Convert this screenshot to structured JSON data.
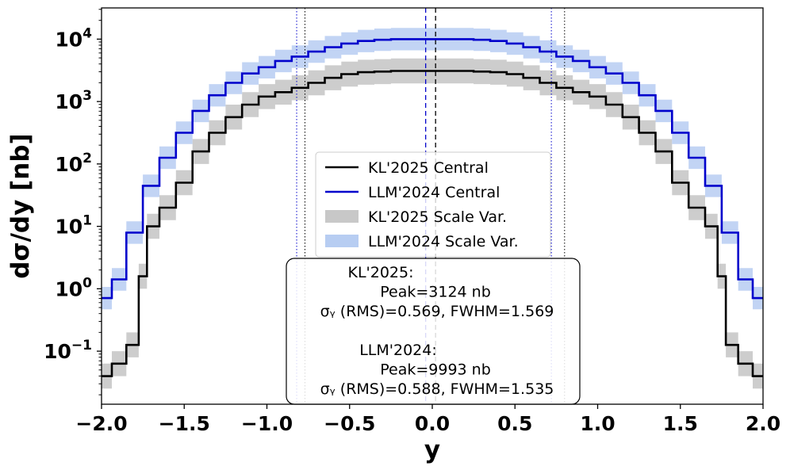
{
  "chart_data": {
    "type": "line",
    "xlabel": "y",
    "ylabel": "dσ/dy [nb]",
    "xlim": [
      -2.0,
      2.0
    ],
    "ylim_log10": [
      -1.85,
      4.5
    ],
    "yscale": "log",
    "grid": false,
    "x_ticks": [
      "−2.0",
      "−1.5",
      "−1.0",
      "−0.5",
      "0.0",
      "0.5",
      "1.0",
      "1.5",
      "2.0"
    ],
    "x_tick_values": [
      -2.0,
      -1.5,
      -1.0,
      -0.5,
      0.0,
      0.5,
      1.0,
      1.5,
      2.0
    ],
    "y_ticks": [
      {
        "exp": -1,
        "base": "10",
        "sup": "−1"
      },
      {
        "exp": 0,
        "base": "10",
        "sup": "0"
      },
      {
        "exp": 1,
        "base": "10",
        "sup": "1"
      },
      {
        "exp": 2,
        "base": "10",
        "sup": "2"
      },
      {
        "exp": 3,
        "base": "10",
        "sup": "3"
      },
      {
        "exp": 4,
        "base": "10",
        "sup": "4"
      }
    ],
    "series": [
      {
        "name": "KL'2025 Central",
        "band_name": "KL'2025 Scale Var.",
        "color": "#000000",
        "band_color": "#c8c8c8",
        "x": [
          -1.975,
          -1.9,
          -1.8,
          -1.75,
          -1.7,
          -1.6,
          -1.5,
          -1.4,
          -1.3,
          -1.2,
          -1.1,
          -1.0,
          -0.9,
          -0.8,
          -0.7,
          -0.6,
          -0.5,
          -0.4,
          -0.3,
          -0.2,
          -0.1,
          0.0,
          0.1,
          0.2,
          0.3,
          0.4,
          0.5,
          0.6,
          0.7,
          0.8,
          0.9,
          1.0,
          1.1,
          1.2,
          1.3,
          1.4,
          1.5,
          1.6,
          1.7,
          1.75,
          1.8,
          1.9,
          1.975
        ],
        "log10_y": [
          -1.4,
          -1.2,
          -0.9,
          0.2,
          1.0,
          1.3,
          1.7,
          2.2,
          2.5,
          2.75,
          2.95,
          3.08,
          3.15,
          3.22,
          3.3,
          3.38,
          3.44,
          3.47,
          3.48,
          3.49,
          3.49,
          3.49,
          3.49,
          3.49,
          3.48,
          3.47,
          3.44,
          3.38,
          3.3,
          3.22,
          3.15,
          3.08,
          2.95,
          2.75,
          2.5,
          2.2,
          1.7,
          1.3,
          1.0,
          0.2,
          -0.9,
          -1.2,
          -1.4
        ],
        "band_half_width_log10": 0.2,
        "peak_x": 0.02,
        "rms_lines_x": [
          -0.77,
          0.8
        ]
      },
      {
        "name": "LLM'2024 Central",
        "band_name": "LLM'2024 Scale Var.",
        "color": "#0000cc",
        "band_color": "#b7cdf2",
        "x": [
          -1.975,
          -1.9,
          -1.8,
          -1.7,
          -1.6,
          -1.5,
          -1.4,
          -1.3,
          -1.2,
          -1.1,
          -1.0,
          -0.9,
          -0.8,
          -0.7,
          -0.6,
          -0.5,
          -0.4,
          -0.3,
          -0.2,
          -0.1,
          0.0,
          0.1,
          0.2,
          0.3,
          0.4,
          0.5,
          0.6,
          0.7,
          0.8,
          0.9,
          1.0,
          1.1,
          1.2,
          1.3,
          1.4,
          1.5,
          1.6,
          1.7,
          1.8,
          1.9,
          1.975
        ],
        "log10_y": [
          -0.15,
          0.15,
          0.9,
          1.65,
          2.1,
          2.5,
          2.85,
          3.1,
          3.3,
          3.45,
          3.55,
          3.65,
          3.72,
          3.8,
          3.87,
          3.93,
          3.97,
          3.99,
          4.0,
          4.0,
          4.0,
          4.0,
          4.0,
          3.99,
          3.97,
          3.93,
          3.87,
          3.8,
          3.72,
          3.65,
          3.55,
          3.45,
          3.3,
          3.1,
          2.85,
          2.5,
          2.1,
          1.65,
          0.9,
          0.15,
          -0.15
        ],
        "band_half_width_log10": 0.18,
        "peak_x": -0.04,
        "rms_lines_x": [
          -0.82,
          0.72
        ]
      }
    ],
    "legend": {
      "placement": "center",
      "entries": [
        "KL'2025 Central",
        "LLM'2024 Central",
        "KL'2025 Scale Var.",
        "LLM'2024 Scale Var."
      ]
    },
    "annotation": {
      "placement": "bottom-center",
      "lines": [
        "KL'2025:",
        "Peak=3124 nb",
        "σᵧ (RMS)=0.569, FWHM=1.569",
        "",
        "LLM'2024:",
        "Peak=9993 nb",
        "σᵧ (RMS)=0.588, FWHM=1.535"
      ]
    }
  }
}
